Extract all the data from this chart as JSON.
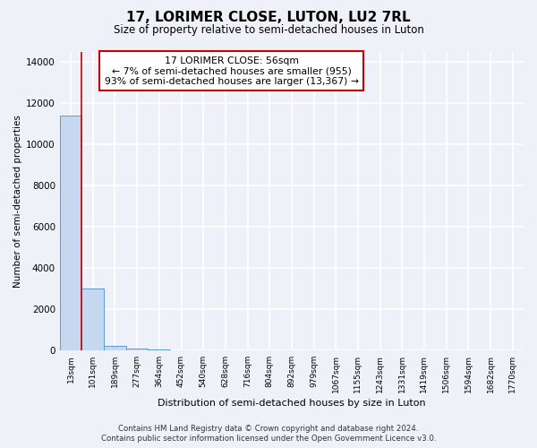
{
  "title": "17, LORIMER CLOSE, LUTON, LU2 7RL",
  "subtitle": "Size of property relative to semi-detached houses in Luton",
  "xlabel": "Distribution of semi-detached houses by size in Luton",
  "ylabel": "Number of semi-detached properties",
  "bar_color": "#c5d8f0",
  "bar_edge_color": "#5b9bd5",
  "annotation_box_color": "#cc0000",
  "annotation_text": "17 LORIMER CLOSE: 56sqm\n← 7% of semi-detached houses are smaller (955)\n93% of semi-detached houses are larger (13,367) →",
  "vline_color": "#cc0000",
  "categories": [
    "13sqm",
    "101sqm",
    "189sqm",
    "277sqm",
    "364sqm",
    "452sqm",
    "540sqm",
    "628sqm",
    "716sqm",
    "804sqm",
    "892sqm",
    "979sqm",
    "1067sqm",
    "1155sqm",
    "1243sqm",
    "1331sqm",
    "1419sqm",
    "1506sqm",
    "1594sqm",
    "1682sqm",
    "1770sqm"
  ],
  "values": [
    11400,
    3000,
    200,
    80,
    40,
    20,
    10,
    5,
    3,
    2,
    1,
    1,
    1,
    1,
    0,
    0,
    0,
    0,
    0,
    0,
    0
  ],
  "ylim": [
    0,
    14500
  ],
  "yticks": [
    0,
    2000,
    4000,
    6000,
    8000,
    10000,
    12000,
    14000
  ],
  "footer_line1": "Contains HM Land Registry data © Crown copyright and database right 2024.",
  "footer_line2": "Contains public sector information licensed under the Open Government Licence v3.0.",
  "background_color": "#eef2f8",
  "grid_color": "#ffffff"
}
